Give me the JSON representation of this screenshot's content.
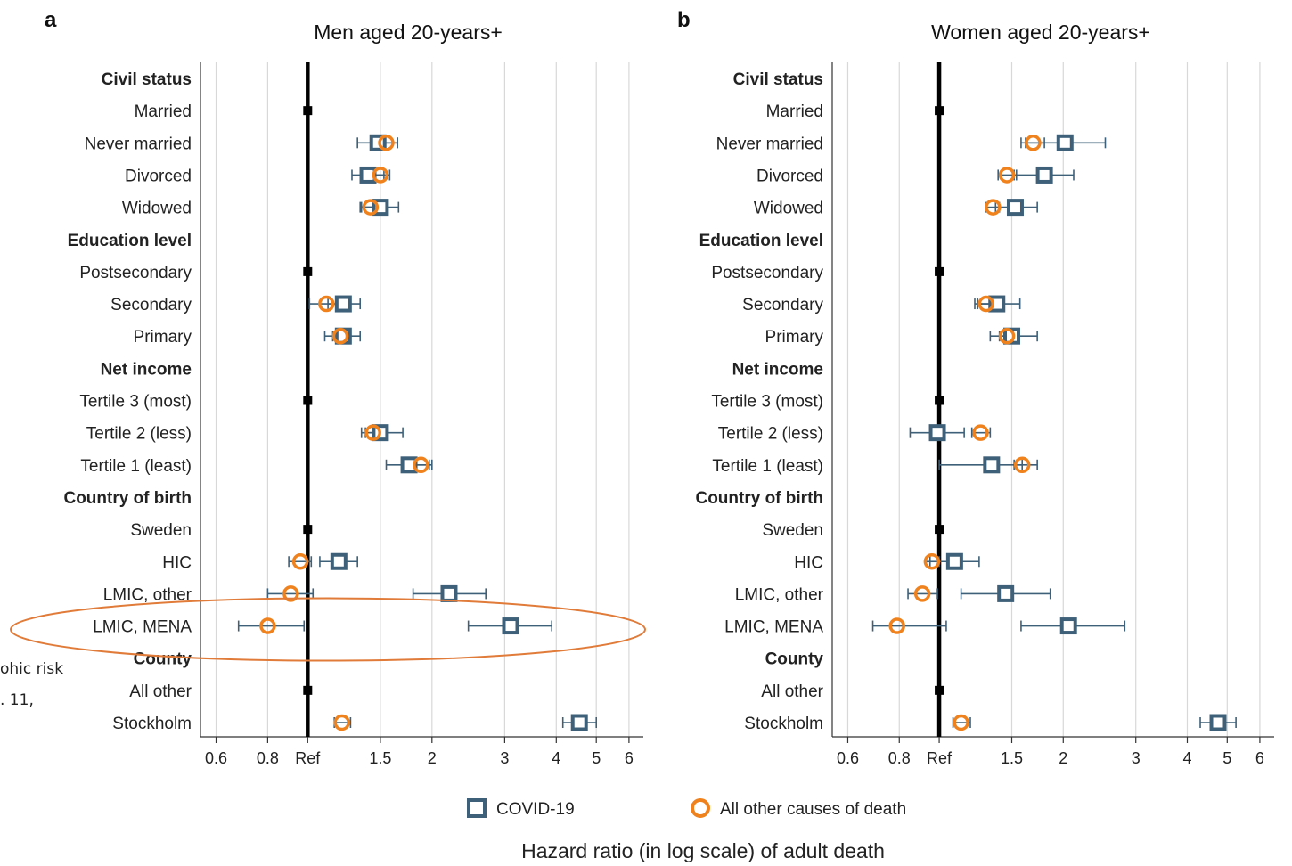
{
  "figure": {
    "xlabel": "Hazard ratio (in log scale) of adult death",
    "side_note_lines": [
      "ohic risk",
      ". 11,"
    ]
  },
  "legend": {
    "items": [
      {
        "label": "COVID-19",
        "marker": "square",
        "color": "#3e6079"
      },
      {
        "label": "All other causes of death",
        "marker": "circle",
        "color": "#f0821e"
      }
    ]
  },
  "colors": {
    "covid": "#3e6079",
    "other": "#f0821e",
    "ref_line": "#000000",
    "grid": "#d8d8d8",
    "highlight_ellipse": "#e07b39"
  },
  "chart_data": [
    {
      "type": "forest",
      "panel_letter": "a",
      "title": "Men aged 20-years+",
      "xscale": "log",
      "xlim": [
        0.55,
        6.5
      ],
      "ticks": [
        {
          "v": 0.6,
          "label": "0.6"
        },
        {
          "v": 0.8,
          "label": "0.8"
        },
        {
          "v": 1,
          "label": "Ref"
        },
        {
          "v": 1.5,
          "label": "1.5"
        },
        {
          "v": 2,
          "label": "2"
        },
        {
          "v": 3,
          "label": "3"
        },
        {
          "v": 4,
          "label": "4"
        },
        {
          "v": 5,
          "label": "5"
        },
        {
          "v": 6,
          "label": "6"
        }
      ],
      "rows": [
        {
          "label": "Civil status",
          "header": true
        },
        {
          "label": "Married",
          "ref": true
        },
        {
          "label": "Never married",
          "covid": [
            1.48,
            1.32,
            1.65
          ],
          "other": [
            1.55,
            1.45,
            1.65
          ]
        },
        {
          "label": "Divorced",
          "covid": [
            1.4,
            1.28,
            1.53
          ],
          "other": [
            1.5,
            1.42,
            1.58
          ]
        },
        {
          "label": "Widowed",
          "covid": [
            1.5,
            1.34,
            1.66
          ],
          "other": [
            1.42,
            1.35,
            1.5
          ]
        },
        {
          "label": "Education level",
          "header": true
        },
        {
          "label": "Postsecondary",
          "ref": true
        },
        {
          "label": "Secondary",
          "covid": [
            1.22,
            1.12,
            1.34
          ],
          "other": [
            1.11,
            1.01,
            1.21
          ]
        },
        {
          "label": "Primary",
          "covid": [
            1.22,
            1.1,
            1.34
          ],
          "other": [
            1.2,
            1.15,
            1.26
          ]
        },
        {
          "label": "Net income",
          "header": true
        },
        {
          "label": "Tertile 3 (most)",
          "ref": true
        },
        {
          "label": "Tertile 2 (less)",
          "covid": [
            1.5,
            1.35,
            1.7
          ],
          "other": [
            1.44,
            1.38,
            1.5
          ]
        },
        {
          "label": "Tertile 1 (least)",
          "covid": [
            1.76,
            1.55,
            2.0
          ],
          "other": [
            1.88,
            1.8,
            1.97
          ]
        },
        {
          "label": "Country of birth",
          "header": true
        },
        {
          "label": "Sweden",
          "ref": true
        },
        {
          "label": "HIC",
          "covid": [
            1.19,
            1.07,
            1.32
          ],
          "other": [
            0.96,
            0.9,
            1.02
          ]
        },
        {
          "label": "LMIC, other",
          "covid": [
            2.2,
            1.8,
            2.7
          ],
          "other": [
            0.91,
            0.8,
            1.03
          ]
        },
        {
          "label": "LMIC, MENA",
          "covid": [
            3.1,
            2.45,
            3.9
          ],
          "other": [
            0.8,
            0.68,
            0.98
          ]
        },
        {
          "label": "County",
          "header": true
        },
        {
          "label": "All other",
          "ref": true
        },
        {
          "label": "Stockholm",
          "covid": [
            4.55,
            4.15,
            5.0
          ],
          "other": [
            1.21,
            1.16,
            1.27
          ]
        }
      ],
      "highlight": {
        "row_label": "LMIC, MENA",
        "shape": "ellipse"
      }
    },
    {
      "type": "forest",
      "panel_letter": "b",
      "title": "Women aged 20-years+",
      "xscale": "log",
      "xlim": [
        0.55,
        6.5
      ],
      "ticks": [
        {
          "v": 0.6,
          "label": "0.6"
        },
        {
          "v": 0.8,
          "label": "0.8"
        },
        {
          "v": 1,
          "label": "Ref"
        },
        {
          "v": 1.5,
          "label": "1.5"
        },
        {
          "v": 2,
          "label": "2"
        },
        {
          "v": 3,
          "label": "3"
        },
        {
          "v": 4,
          "label": "4"
        },
        {
          "v": 5,
          "label": "5"
        },
        {
          "v": 6,
          "label": "6"
        }
      ],
      "rows": [
        {
          "label": "Civil status",
          "header": true
        },
        {
          "label": "Married",
          "ref": true
        },
        {
          "label": "Never married",
          "covid": [
            2.02,
            1.62,
            2.53
          ],
          "other": [
            1.69,
            1.58,
            1.8
          ]
        },
        {
          "label": "Divorced",
          "covid": [
            1.8,
            1.52,
            2.12
          ],
          "other": [
            1.46,
            1.39,
            1.54
          ]
        },
        {
          "label": "Widowed",
          "covid": [
            1.53,
            1.37,
            1.73
          ],
          "other": [
            1.35,
            1.3,
            1.4
          ]
        },
        {
          "label": "Education level",
          "header": true
        },
        {
          "label": "Postsecondary",
          "ref": true
        },
        {
          "label": "Secondary",
          "covid": [
            1.38,
            1.22,
            1.57
          ],
          "other": [
            1.3,
            1.24,
            1.36
          ]
        },
        {
          "label": "Primary",
          "covid": [
            1.5,
            1.33,
            1.73
          ],
          "other": [
            1.46,
            1.4,
            1.52
          ]
        },
        {
          "label": "Net income",
          "header": true
        },
        {
          "label": "Tertile 3 (most)",
          "ref": true
        },
        {
          "label": "Tertile 2 (less)",
          "covid": [
            0.99,
            0.85,
            1.15
          ],
          "other": [
            1.26,
            1.2,
            1.33
          ]
        },
        {
          "label": "Tertile 1 (least)",
          "covid": [
            1.34,
            1.0,
            1.59
          ],
          "other": [
            1.59,
            1.52,
            1.73
          ]
        },
        {
          "label": "Country of birth",
          "header": true
        },
        {
          "label": "Sweden",
          "ref": true
        },
        {
          "label": "HIC",
          "covid": [
            1.09,
            0.95,
            1.25
          ],
          "other": [
            0.96,
            0.93,
            1.0
          ]
        },
        {
          "label": "LMIC, other",
          "covid": [
            1.45,
            1.13,
            1.86
          ],
          "other": [
            0.91,
            0.84,
            0.99
          ]
        },
        {
          "label": "LMIC, MENA",
          "covid": [
            2.06,
            1.58,
            2.82
          ],
          "other": [
            0.79,
            0.69,
            1.04
          ]
        },
        {
          "label": "County",
          "header": true
        },
        {
          "label": "All other",
          "ref": true
        },
        {
          "label": "Stockholm",
          "covid": [
            4.75,
            4.3,
            5.25
          ],
          "other": [
            1.13,
            1.08,
            1.19
          ]
        }
      ]
    }
  ]
}
